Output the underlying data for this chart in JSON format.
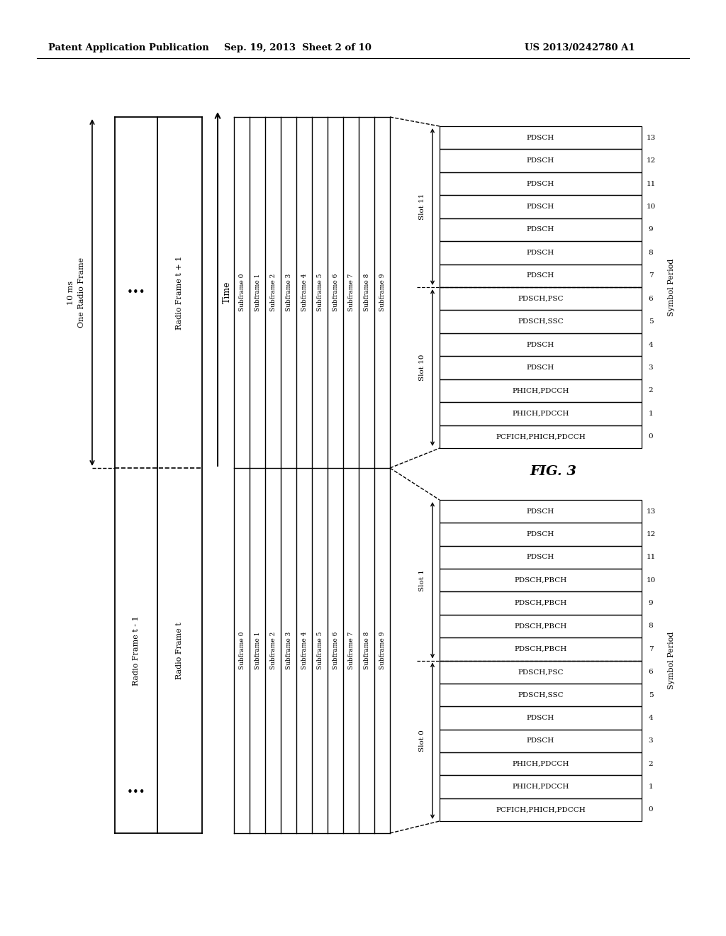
{
  "header_left": "Patent Application Publication",
  "header_mid": "Sep. 19, 2013  Sheet 2 of 10",
  "header_right": "US 2013/0242780 A1",
  "fig_label": "FIG. 3",
  "bg_color": "#ffffff",
  "subframes": [
    "Subframe 0",
    "Subframe 1",
    "Subframe 2",
    "Subframe 3",
    "Subframe 4",
    "Subframe 5",
    "Subframe 6",
    "Subframe 7",
    "Subframe 8",
    "Subframe 9"
  ],
  "upper_rows_top_to_bot": [
    "PDSCH",
    "PDSCH",
    "PDSCH",
    "PDSCH",
    "PDSCH",
    "PDSCH",
    "PDSCH",
    "PDSCH,PSC",
    "PDSCH,SSC",
    "PDSCH",
    "PDSCH",
    "PHICH,PDCCH",
    "PHICH,PDCCH",
    "PCFICH,PHICH,PDCCH"
  ],
  "lower_rows_top_to_bot": [
    "PDSCH",
    "PDSCH",
    "PDSCH",
    "PDSCH,PBCH",
    "PDSCH,PBCH",
    "PDSCH,PBCH",
    "PDSCH,PBCH",
    "PDSCH,PSC",
    "PDSCH,SSC",
    "PDSCH",
    "PDSCH",
    "PHICH,PDCCH",
    "PHICH,PDCCH",
    "PCFICH,PHICH,PDCCH"
  ],
  "upper_slot_top_label": "Slot 11",
  "upper_slot_bot_label": "Slot 10",
  "lower_slot_top_label": "Slot 1",
  "lower_slot_bot_label": "Slot 0",
  "symbol_period_label": "Symbol Period",
  "one_radio_frame_label": "One Radio Frame",
  "time_ms_label": "10 ms",
  "time_label": "Time",
  "radio_frame_tm1": "Radio Frame t - 1",
  "radio_frame_t": "Radio Frame t",
  "radio_frame_tp1": "Radio Frame t + 1"
}
